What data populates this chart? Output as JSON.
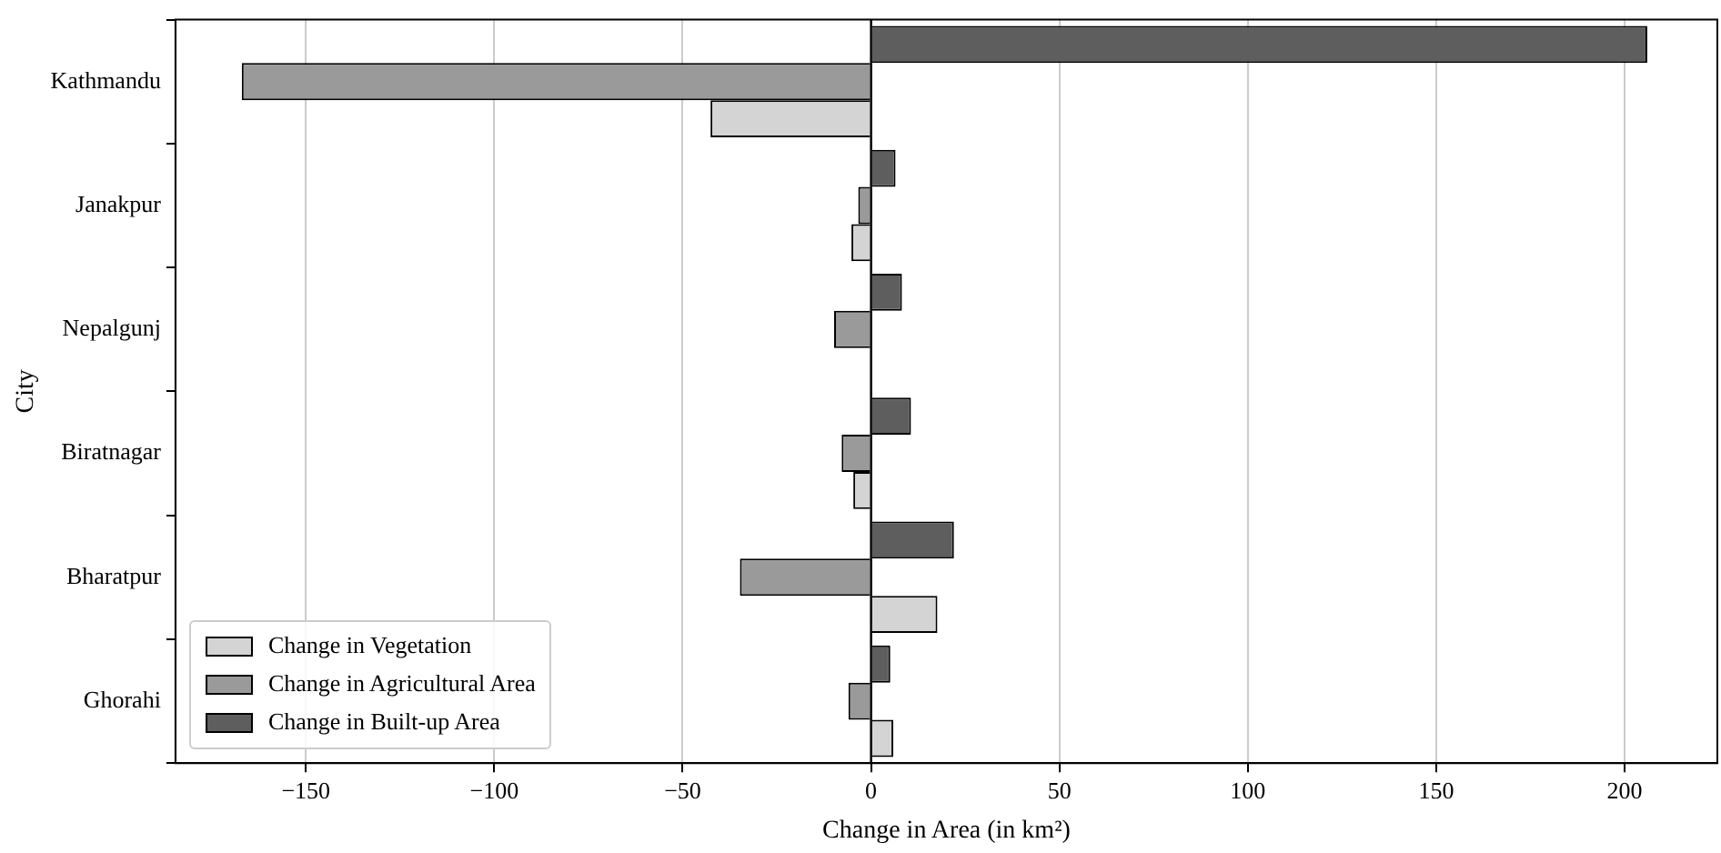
{
  "chart_data": {
    "type": "bar",
    "orientation": "horizontal",
    "xlabel": "Change in Area (in km²)",
    "ylabel": "City",
    "categories": [
      "Kathmandu",
      "Janakpur",
      "Nepalgunj",
      "Biratnagar",
      "Bharatpur",
      "Ghorahi"
    ],
    "series": [
      {
        "name": "Change in Vegetation",
        "color": "#d4d4d4",
        "values": [
          -42.6,
          -5.2,
          0,
          -4.7,
          17.6,
          5.9
        ]
      },
      {
        "name": "Change in Agricultural Area",
        "color": "#9a9a9a",
        "values": [
          -167,
          -3.4,
          -9.8,
          -7.8,
          -34.8,
          -6
        ]
      },
      {
        "name": "Change in Built-up Area",
        "color": "#5e5e5e",
        "values": [
          206,
          6.5,
          8.2,
          10.6,
          22,
          5.1
        ]
      }
    ],
    "xlim": [
      -184.6,
      224.6
    ],
    "xticks": [
      -150,
      -100,
      -50,
      0,
      50,
      100,
      150,
      200
    ],
    "ref_lines": [
      {
        "axis": "x",
        "value": 0
      }
    ],
    "grid": "x",
    "legend": "bottom left"
  }
}
